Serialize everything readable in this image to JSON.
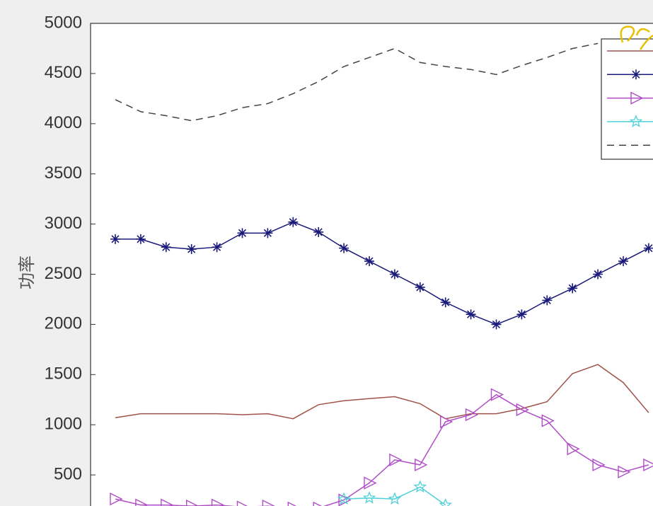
{
  "chart_data": {
    "type": "line",
    "y_label": "功率",
    "ylim": [
      0,
      5000
    ],
    "yticks": [
      500,
      1000,
      1500,
      2000,
      2500,
      3000,
      3500,
      4000,
      4500,
      5000
    ],
    "series": [
      {
        "color": "#a0524a",
        "marker": "none",
        "dash": false,
        "values": [
          1070,
          1110,
          1110,
          1110,
          1110,
          1100,
          1110,
          1060,
          1200,
          1240,
          1260,
          1280,
          1210,
          1060,
          1110,
          1110,
          1160,
          1230,
          1510,
          1600,
          1420,
          1120
        ]
      },
      {
        "color": "#1a1a7a",
        "marker": "asterisk",
        "dash": false,
        "values": [
          2850,
          2850,
          2770,
          2750,
          2770,
          2910,
          2910,
          3020,
          2920,
          2760,
          2630,
          2500,
          2370,
          2220,
          2100,
          2000,
          2100,
          2240,
          2360,
          2500,
          2630,
          2760
        ]
      },
      {
        "color": "#b04cc8",
        "marker": "triangle",
        "dash": false,
        "values": [
          260,
          200,
          200,
          190,
          200,
          180,
          190,
          170,
          170,
          250,
          420,
          650,
          600,
          1030,
          1100,
          1300,
          1150,
          1040,
          760,
          600,
          530,
          600
        ]
      },
      {
        "color": "#4fd0d8",
        "marker": "star",
        "dash": false,
        "values": [
          null,
          null,
          null,
          null,
          null,
          null,
          null,
          null,
          null,
          260,
          270,
          260,
          380,
          200,
          null,
          null,
          null,
          null,
          null,
          null,
          null,
          null
        ]
      },
      {
        "color": "#444444",
        "marker": "none",
        "dash": true,
        "values": [
          4240,
          4120,
          4080,
          4030,
          4080,
          4160,
          4200,
          4300,
          4420,
          4570,
          4660,
          4750,
          4610,
          4570,
          4540,
          4490,
          4580,
          4660,
          4750,
          4800,
          null,
          null
        ]
      }
    ]
  }
}
